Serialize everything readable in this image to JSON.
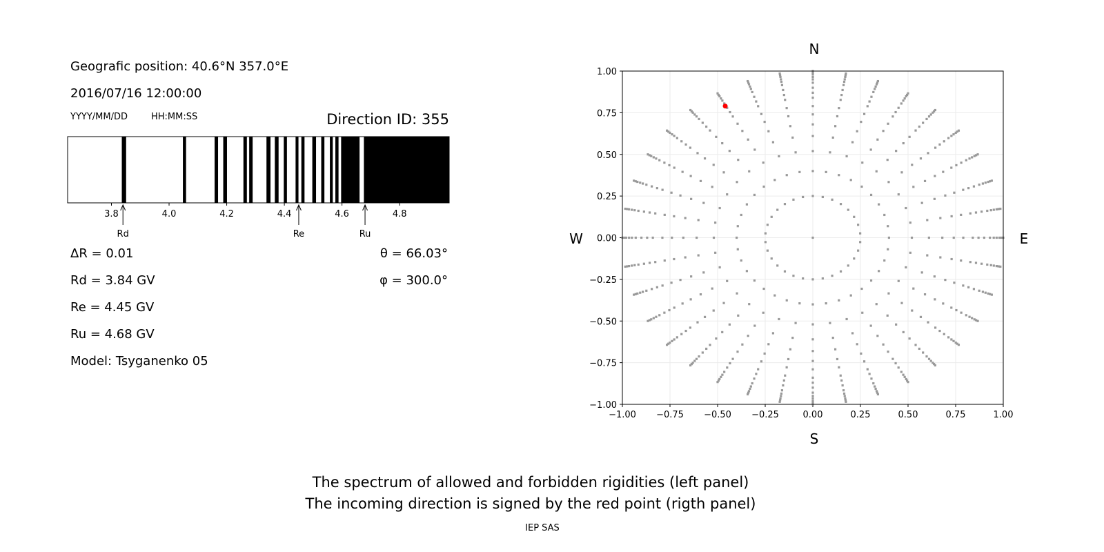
{
  "left_panel": {
    "position": "Geografic position: 40.6°N 357.0°E",
    "datetime": "2016/07/16 12:00:00",
    "date_format": "YYYY/MM/DD",
    "time_format": "HH:MM:SS",
    "direction_id": "Direction ID: 355",
    "delta_r": "ΔR = 0.01",
    "rd": "Rd = 3.84 GV",
    "re": "Re = 4.45 GV",
    "ru": "Ru = 4.68 GV",
    "model": "Model: Tsyganenko 05",
    "theta": "θ = 66.03°",
    "phi": "φ = 300.0°"
  },
  "footer": {
    "line1": "The spectrum of allowed and forbidden rigidities (left panel)",
    "line2": "The incoming direction is signed by the red point (rigth panel)",
    "credit": "IEP SAS"
  },
  "chart_data": [
    {
      "type": "bar",
      "subtype": "rigidity-spectrum",
      "xlim": [
        3.648,
        4.972
      ],
      "xticks": [
        "3.8",
        "4.0",
        "4.2",
        "4.4",
        "4.6",
        "4.8"
      ],
      "xtick_values": [
        3.8,
        4.0,
        4.2,
        4.4,
        4.6,
        4.8
      ],
      "forbidden_color": "#000000",
      "allowed_color": "#ffffff",
      "forbidden_bands": [
        [
          3.836,
          3.851
        ],
        [
          4.048,
          4.059
        ],
        [
          4.158,
          4.17
        ],
        [
          4.188,
          4.201
        ],
        [
          4.258,
          4.27
        ],
        [
          4.278,
          4.29
        ],
        [
          4.338,
          4.352
        ],
        [
          4.367,
          4.38
        ],
        [
          4.398,
          4.409
        ],
        [
          4.439,
          4.449
        ],
        [
          4.459,
          4.47
        ],
        [
          4.497,
          4.51
        ],
        [
          4.528,
          4.539
        ],
        [
          4.558,
          4.568
        ],
        [
          4.577,
          4.588
        ],
        [
          4.597,
          4.661
        ],
        [
          4.676,
          4.972
        ]
      ],
      "annotations": [
        {
          "label": "Rd",
          "x": 3.84
        },
        {
          "label": "Re",
          "x": 4.45
        },
        {
          "label": "Ru",
          "x": 4.68
        }
      ]
    },
    {
      "type": "scatter",
      "subtype": "direction-grid",
      "xlim": [
        -1.0,
        1.0
      ],
      "ylim": [
        -1.0,
        1.0
      ],
      "grid": true,
      "xticks": [
        "−1.00",
        "−0.75",
        "−0.50",
        "−0.25",
        "0.00",
        "0.25",
        "0.50",
        "0.75",
        "1.00"
      ],
      "yticks": [
        "1.00",
        "0.75",
        "0.50",
        "0.25",
        "0.00",
        "−0.25",
        "−0.50",
        "−0.75",
        "−1.00"
      ],
      "tick_values": [
        -1.0,
        -0.75,
        -0.5,
        -0.25,
        0.0,
        0.25,
        0.5,
        0.75,
        1.0
      ],
      "compass": {
        "north": "N",
        "south": "S",
        "west": "W",
        "east": "E"
      },
      "point_color": "#999999",
      "center_point": [
        0.0,
        0.0
      ],
      "inner_ring": {
        "radius": 0.25,
        "azimuth_step_deg": 12
      },
      "spokes": {
        "azimuth_step_deg": 10,
        "radii": [
          0.4,
          0.52,
          0.61,
          0.68,
          0.74,
          0.79,
          0.84,
          0.87,
          0.9,
          0.93,
          0.95,
          0.965,
          0.98,
          0.99,
          1.0
        ]
      },
      "highlight_point": {
        "x": -0.46,
        "y": 0.79,
        "color": "#ff0000"
      }
    }
  ]
}
